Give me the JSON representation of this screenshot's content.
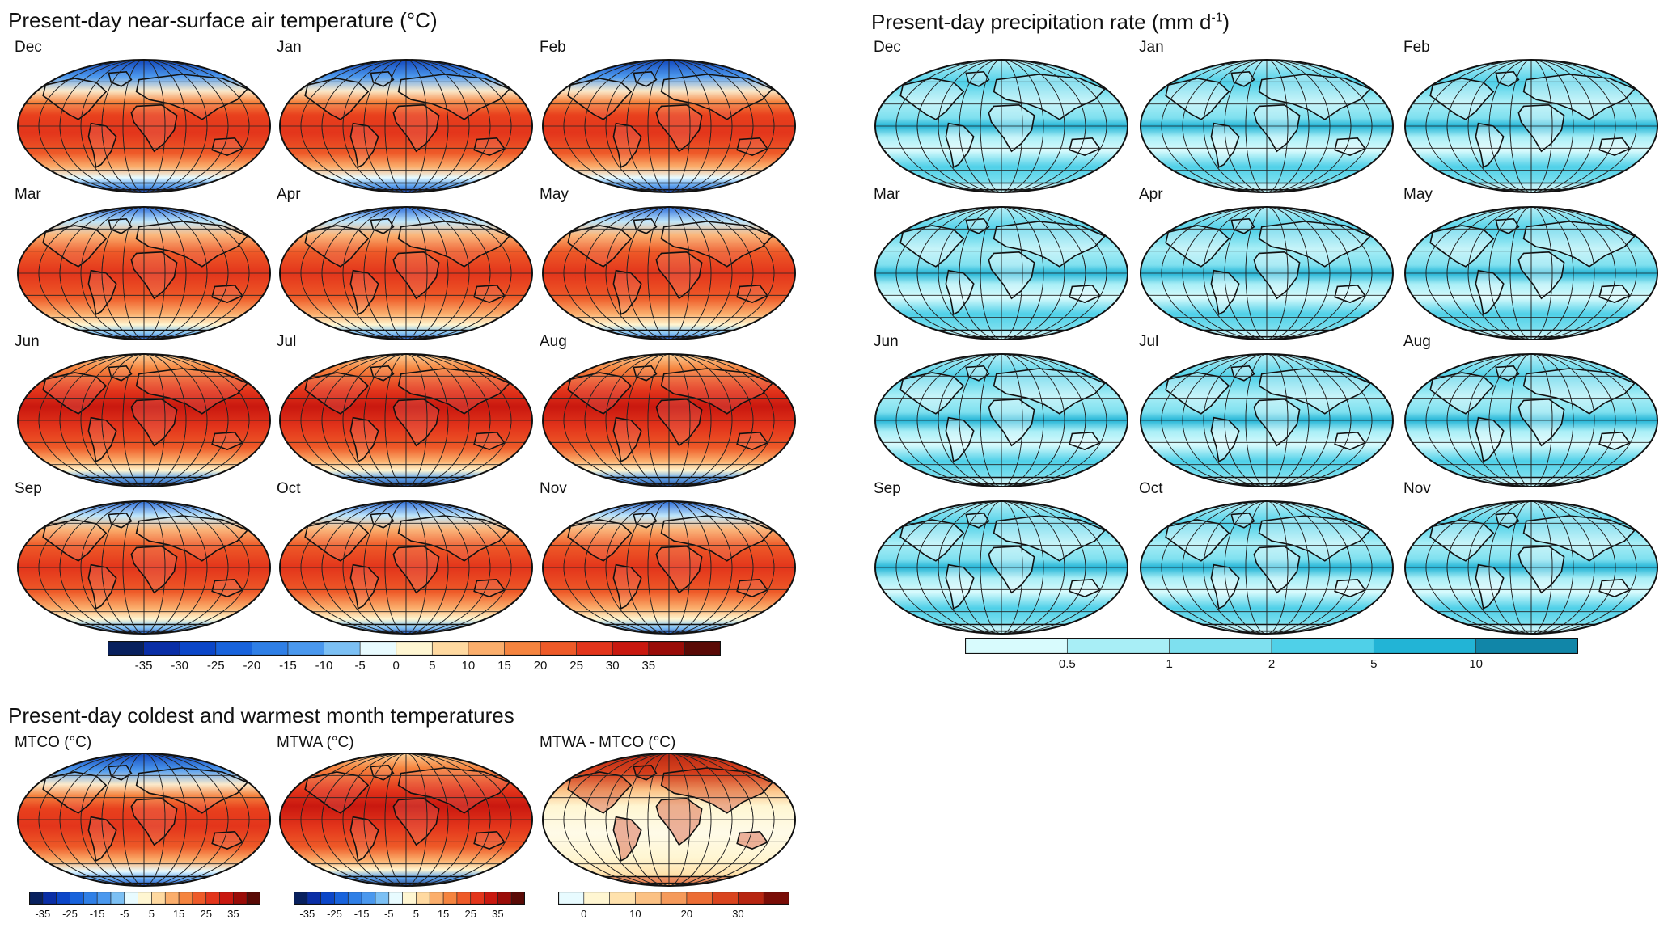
{
  "temperature_section": {
    "title": "Present-day near-surface air temperature (°C)",
    "months": [
      "Dec",
      "Jan",
      "Feb",
      "Mar",
      "Apr",
      "May",
      "Jun",
      "Jul",
      "Aug",
      "Sep",
      "Oct",
      "Nov"
    ],
    "colorbar": {
      "ticks": [
        "-35",
        "-30",
        "-25",
        "-20",
        "-15",
        "-10",
        "-5",
        "0",
        "5",
        "10",
        "15",
        "20",
        "25",
        "30",
        "35"
      ],
      "colors": [
        "#08205e",
        "#0a2ea6",
        "#0b46c8",
        "#1863dc",
        "#2f7fe6",
        "#4a98ee",
        "#7cc0f4",
        "#e8fbff",
        "#fff6d2",
        "#ffd9a0",
        "#fbae6c",
        "#f5843f",
        "#ee5a28",
        "#e3351b",
        "#c9180f",
        "#9a0c08",
        "#5a0a06"
      ]
    }
  },
  "precipitation_section": {
    "title": "Present-day precipitation rate (mm d",
    "title_sup": "-1",
    "title_end": ")",
    "months": [
      "Dec",
      "Jan",
      "Feb",
      "Mar",
      "Apr",
      "May",
      "Jun",
      "Jul",
      "Aug",
      "Sep",
      "Oct",
      "Nov"
    ],
    "colorbar": {
      "ticks": [
        "0.5",
        "1",
        "2",
        "5",
        "10"
      ],
      "colors": [
        "#d8fbfd",
        "#a8eef6",
        "#7ee0ef",
        "#4fd0e8",
        "#22b4d6",
        "#1186a8"
      ]
    }
  },
  "extremes_section": {
    "title": "Present-day coldest and warmest month temperatures",
    "maps": [
      {
        "label": "MTCO (°C)"
      },
      {
        "label": "MTWA (°C)"
      },
      {
        "label": "MTWA - MTCO (°C)"
      }
    ],
    "colorbar_temp": {
      "ticks": [
        "-35",
        "-25",
        "-15",
        "-5",
        "5",
        "15",
        "25",
        "35"
      ]
    },
    "colorbar_diff": {
      "ticks": [
        "0",
        "10",
        "20",
        "30"
      ],
      "colors": [
        "#e8fbff",
        "#fff6d2",
        "#ffe2ad",
        "#fbc184",
        "#f59a5b",
        "#ec6d35",
        "#d9441f",
        "#b72511",
        "#7a0d07"
      ]
    }
  }
}
